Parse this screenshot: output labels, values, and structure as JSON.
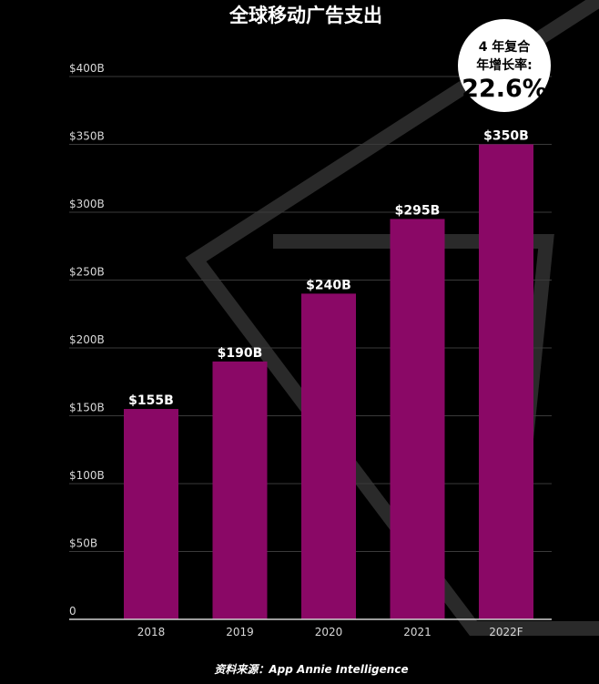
{
  "colors": {
    "background": "#000000",
    "bar": "#8a0866",
    "grid": "#3a3a3a",
    "axis": "#cfcfcf",
    "text": "#ffffff",
    "tick_text": "#d8d8d8",
    "badge_bg": "#ffffff",
    "badge_text": "#000000",
    "decor": "#2a2a2a"
  },
  "badge": {
    "line1": "4 年复合",
    "line2": "年增长率:",
    "value": "22.6%"
  },
  "source": "资料来源：App Annie Intelligence",
  "chart_data": {
    "type": "bar",
    "title": "全球移动广告支出",
    "xlabel": "",
    "ylabel": "",
    "categories": [
      "2018",
      "2019",
      "2020",
      "2021",
      "2022F"
    ],
    "values": [
      155,
      190,
      240,
      295,
      350
    ],
    "value_labels": [
      "$155B",
      "$190B",
      "$240B",
      "$295B",
      "$350B"
    ],
    "ylim": [
      0,
      400
    ],
    "yticks": [
      0,
      50,
      100,
      150,
      200,
      250,
      300,
      350,
      400
    ],
    "ytick_labels": [
      "0",
      "$50B",
      "$100B",
      "$150B",
      "$200B",
      "$250B",
      "$300B",
      "$350B",
      "$400B"
    ],
    "grid": true,
    "legend": "none"
  }
}
